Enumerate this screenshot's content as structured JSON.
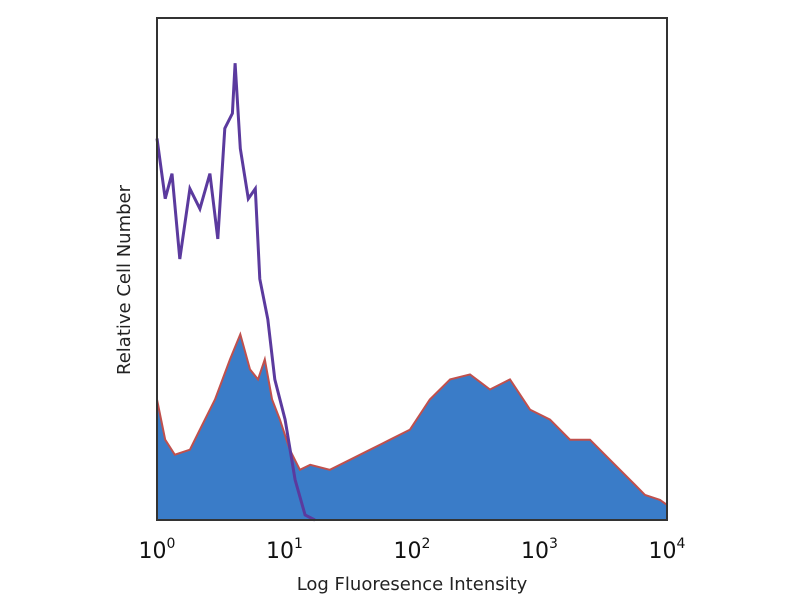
{
  "chart_data": {
    "type": "area",
    "title": "",
    "xlabel": "Log Fluoresence Intensity",
    "ylabel": "Relative Cell Number",
    "x_scale": "log",
    "xlim": [
      1,
      10000
    ],
    "ylim": [
      0,
      100
    ],
    "grid": false,
    "x_ticks": [
      {
        "base": "10",
        "exp": "0",
        "value": 1
      },
      {
        "base": "10",
        "exp": "1",
        "value": 10
      },
      {
        "base": "10",
        "exp": "2",
        "value": 100
      },
      {
        "base": "10",
        "exp": "3",
        "value": 1000
      },
      {
        "base": "10",
        "exp": "4",
        "value": 10000
      }
    ],
    "series": [
      {
        "style": "filled",
        "fill_color": "#3a7cc8",
        "edge_color": "#c0504d",
        "x": [
          1,
          1.16,
          1.38,
          1.81,
          2.17,
          2.85,
          3.74,
          4.5,
          5.36,
          6.2,
          7.0,
          8.0,
          9.2,
          11.0,
          13.2,
          15.9,
          22.7,
          32.6,
          46.9,
          67.2,
          96.4,
          138,
          199,
          285,
          409,
          587,
          842,
          1208,
          1734,
          2489,
          3573,
          5129,
          6720,
          8820,
          10000
        ],
        "y": [
          24,
          16,
          13,
          14,
          18,
          24,
          32,
          37,
          30,
          28,
          32,
          24,
          20,
          14,
          10,
          11,
          10,
          12,
          14,
          16,
          18,
          24,
          28,
          29,
          26,
          28,
          22,
          20,
          16,
          16,
          12,
          8,
          5,
          4,
          3
        ]
      },
      {
        "style": "line",
        "line_color": "#5b3a9e",
        "x": [
          1,
          1.16,
          1.31,
          1.51,
          1.81,
          2.17,
          2.6,
          3.0,
          3.4,
          3.9,
          4.1,
          4.5,
          5.2,
          5.9,
          6.4,
          7.4,
          8.4,
          10.1,
          12.1,
          14.5,
          17.3
        ],
        "y": [
          76,
          64,
          69,
          52,
          66,
          62,
          69,
          56,
          78,
          81,
          91,
          74,
          64,
          66,
          48,
          40,
          28,
          20,
          8,
          1,
          0
        ]
      }
    ]
  }
}
